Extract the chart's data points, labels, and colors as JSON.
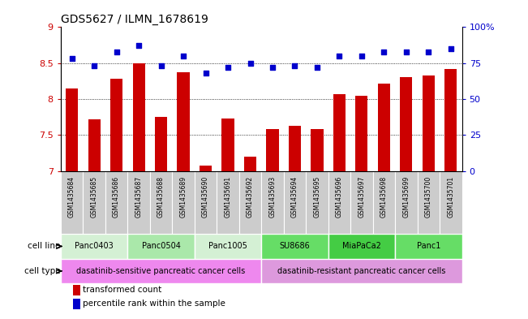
{
  "title": "GDS5627 / ILMN_1678619",
  "samples": [
    "GSM1435684",
    "GSM1435685",
    "GSM1435686",
    "GSM1435687",
    "GSM1435688",
    "GSM1435689",
    "GSM1435690",
    "GSM1435691",
    "GSM1435692",
    "GSM1435693",
    "GSM1435694",
    "GSM1435695",
    "GSM1435696",
    "GSM1435697",
    "GSM1435698",
    "GSM1435699",
    "GSM1435700",
    "GSM1435701"
  ],
  "transformed_count": [
    8.15,
    7.72,
    8.28,
    8.5,
    7.75,
    8.37,
    7.08,
    7.73,
    7.2,
    7.58,
    7.63,
    7.58,
    8.07,
    8.05,
    8.22,
    8.3,
    8.33,
    8.42
  ],
  "percentile_rank": [
    78,
    73,
    83,
    87,
    73,
    80,
    68,
    72,
    75,
    72,
    73,
    72,
    80,
    80,
    83,
    83,
    83,
    85
  ],
  "cell_lines": [
    {
      "name": "Panc0403",
      "start": 0,
      "end": 2,
      "color": "#d4f0d4"
    },
    {
      "name": "Panc0504",
      "start": 3,
      "end": 5,
      "color": "#aae8aa"
    },
    {
      "name": "Panc1005",
      "start": 6,
      "end": 8,
      "color": "#d4f0d4"
    },
    {
      "name": "SU8686",
      "start": 9,
      "end": 11,
      "color": "#66dd66"
    },
    {
      "name": "MiaPaCa2",
      "start": 12,
      "end": 14,
      "color": "#44cc44"
    },
    {
      "name": "Panc1",
      "start": 15,
      "end": 17,
      "color": "#66dd66"
    }
  ],
  "cell_types": [
    {
      "name": "dasatinib-sensitive pancreatic cancer cells",
      "start": 0,
      "end": 8,
      "color": "#ee88ee"
    },
    {
      "name": "dasatinib-resistant pancreatic cancer cells",
      "start": 9,
      "end": 17,
      "color": "#dd99dd"
    }
  ],
  "ylim_left": [
    7.0,
    9.0
  ],
  "ylim_right": [
    0,
    100
  ],
  "yticks_left": [
    7.0,
    7.5,
    8.0,
    8.5,
    9.0
  ],
  "yticks_right": [
    0,
    25,
    50,
    75,
    100
  ],
  "bar_color": "#cc0000",
  "dot_color": "#0000cc",
  "bar_width": 0.55,
  "sample_box_color": "#cccccc",
  "legend_red": "transformed count",
  "legend_blue": "percentile rank within the sample"
}
